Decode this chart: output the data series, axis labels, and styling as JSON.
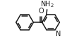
{
  "bg_color": "#ffffff",
  "line_color": "#1a1a1a",
  "line_width": 1.1,
  "figsize": [
    1.12,
    0.69
  ],
  "dpi": 100,
  "text_color": "#1a1a1a"
}
